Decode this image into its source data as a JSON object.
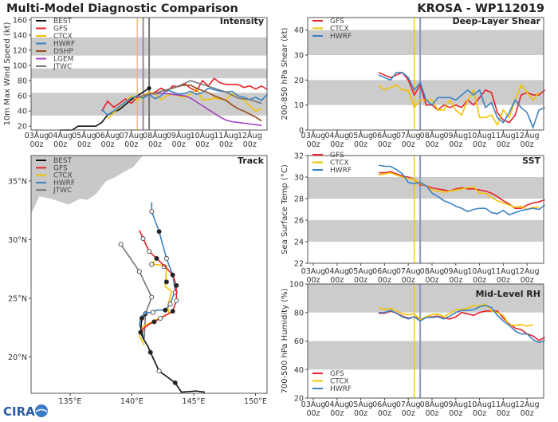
{
  "header": {
    "title": "Multi-Model Diagnostic Comparison",
    "storm": "KROSA - WP112019"
  },
  "colors": {
    "BEST": "#111111",
    "GFS": "#e8202a",
    "CTCX": "#f2c200",
    "HWRF": "#3b82c4",
    "DSHP": "#9a4a1e",
    "LGEM": "#a040c0",
    "JTWC": "#777777",
    "band": "#cccccc",
    "land": "#c8c8c8",
    "init_line": "#8898c0",
    "init_line_2": "#9a8a9a"
  },
  "x_ticks": [
    [
      "03Aug",
      "00z"
    ],
    [
      "04Aug",
      "00z"
    ],
    [
      "05Aug",
      "00z"
    ],
    [
      "06Aug",
      "00z"
    ],
    [
      "07Aug",
      "00z"
    ],
    [
      "08Aug",
      "00z"
    ],
    [
      "09Aug",
      "00z"
    ],
    [
      "10Aug",
      "00z"
    ],
    [
      "11Aug",
      "00z"
    ],
    [
      "12Aug",
      "00z"
    ]
  ],
  "logo": "CIRA",
  "chart_data": [
    {
      "type": "line",
      "title": "Intensity",
      "ylabel": "10m Max Wind Speed (kt)",
      "ylim": [
        15,
        163
      ],
      "yticks": [
        20,
        40,
        60,
        80,
        100,
        120,
        140,
        160
      ],
      "bands": [
        [
          34,
          64
        ],
        [
          83,
          96
        ],
        [
          113,
          137
        ]
      ],
      "vlines": [
        {
          "x": "07Aug06z",
          "color": "CTCX"
        },
        {
          "x": "07Aug12z",
          "color": "init_line_2"
        },
        {
          "x": "07Aug18z",
          "color": "JTWC"
        }
      ],
      "legend": "top-left",
      "series": [
        {
          "name": "BEST",
          "x": [
            "04Aug00z",
            "04Aug12z",
            "04Aug18z",
            "05Aug12z",
            "05Aug18z",
            "06Aug00z",
            "06Aug12z",
            "07Aug00z",
            "07Aug12z",
            "07Aug18z"
          ],
          "values": [
            15,
            15,
            20,
            20,
            25,
            35,
            42,
            55,
            65,
            70
          ]
        },
        {
          "name": "GFS",
          "start": "05Aug18z",
          "step_h": 6,
          "values": [
            40,
            53,
            45,
            50,
            56,
            50,
            58,
            60,
            62,
            65,
            70,
            66,
            73,
            72,
            76,
            70,
            66,
            80,
            73,
            83,
            77,
            75,
            75,
            75,
            71,
            73,
            69,
            73,
            68
          ]
        },
        {
          "name": "CTCX",
          "start": "06Aug00z",
          "step_h": 6,
          "values": [
            30,
            38,
            45,
            52,
            60,
            55,
            60,
            65,
            63,
            55,
            60,
            62,
            60,
            58,
            62,
            70,
            55,
            55,
            57,
            56,
            55,
            63,
            57,
            55,
            47,
            40,
            43
          ]
        },
        {
          "name": "HWRF",
          "start": "05Aug18z",
          "step_h": 6,
          "values": [
            42,
            35,
            40,
            46,
            52,
            57,
            60,
            57,
            62,
            56,
            60,
            68,
            65,
            62,
            63,
            66,
            62,
            64,
            70,
            68,
            66,
            65,
            66,
            60,
            58,
            55,
            58,
            54,
            62
          ]
        },
        {
          "name": "DSHP",
          "start": "07Aug12z",
          "step_h": 6,
          "values": [
            60,
            62,
            63,
            66,
            68,
            70,
            73,
            74,
            74,
            70,
            67,
            64,
            60,
            57,
            54,
            48,
            43,
            40,
            36,
            32,
            27
          ]
        },
        {
          "name": "LGEM",
          "start": "07Aug12z",
          "step_h": 6,
          "values": [
            60,
            62,
            63,
            63,
            63,
            62,
            61,
            60,
            57,
            52,
            47,
            42,
            37,
            32,
            28,
            26,
            25,
            24,
            23,
            22,
            21
          ]
        },
        {
          "name": "JTWC",
          "start": "07Aug12z",
          "step_h": 12,
          "values": [
            60,
            63,
            68,
            73,
            80,
            75,
            70,
            65,
            57,
            55,
            50
          ]
        }
      ]
    },
    {
      "type": "line",
      "title": "Deep-Layer Shear",
      "ylabel": "200-850 hPa Shear (kt)",
      "ylim": [
        0,
        45
      ],
      "yticks": [
        0,
        10,
        20,
        30,
        40
      ],
      "bands": [
        [
          10,
          20
        ],
        [
          30,
          40
        ]
      ],
      "vlines": [
        {
          "x": "07Aug06z",
          "color": "CTCX"
        },
        {
          "x": "07Aug12z",
          "color": "init_line"
        }
      ],
      "legend": "top-left",
      "series": [
        {
          "name": "GFS",
          "start": "05Aug18z",
          "step_h": 6,
          "values": [
            23,
            22,
            21,
            22,
            23,
            20,
            14,
            18,
            10,
            10,
            8,
            10,
            9,
            10,
            9,
            12,
            10,
            13,
            16,
            15,
            7,
            4,
            3,
            6,
            14,
            15,
            14,
            14,
            16
          ]
        },
        {
          "name": "CTCX",
          "start": "05Aug18z",
          "step_h": 6,
          "values": [
            18,
            16,
            17,
            18,
            16,
            16,
            9,
            12,
            12,
            12,
            8,
            8,
            12,
            8,
            6,
            12,
            16,
            5,
            5,
            6,
            2,
            8,
            5,
            12,
            18,
            15,
            12,
            15
          ]
        },
        {
          "name": "HWRF",
          "start": "05Aug18z",
          "step_h": 6,
          "values": [
            22,
            21,
            20,
            23,
            23,
            21,
            16,
            19,
            12,
            10,
            13,
            13,
            13,
            12,
            14,
            16,
            14,
            16,
            9,
            11,
            5,
            3,
            7,
            12,
            9,
            7,
            1,
            8,
            9
          ]
        }
      ]
    },
    {
      "type": "line",
      "title": "SST",
      "ylabel": "Sea Surface Temp (°C)",
      "ylim": [
        22,
        32
      ],
      "yticks": [
        22,
        24,
        26,
        28,
        30,
        32
      ],
      "bands": [
        [
          24,
          26
        ],
        [
          28,
          30
        ],
        [
          32,
          32.4
        ]
      ],
      "vlines": [
        {
          "x": "07Aug06z",
          "color": "CTCX"
        },
        {
          "x": "07Aug12z",
          "color": "init_line"
        }
      ],
      "legend": "top-left",
      "series": [
        {
          "name": "GFS",
          "start": "05Aug18z",
          "step_h": 6,
          "values": [
            30.4,
            30.4,
            30.5,
            30.3,
            30.1,
            30.0,
            29.8,
            29.3,
            29.2,
            29.0,
            28.9,
            28.8,
            28.7,
            28.9,
            29.0,
            28.9,
            28.9,
            28.8,
            28.7,
            28.5,
            28.2,
            27.8,
            27.5,
            27.1,
            27.1,
            27.4,
            27.6,
            27.7,
            27.9
          ]
        },
        {
          "name": "CTCX",
          "start": "05Aug18z",
          "step_h": 6,
          "values": [
            30.2,
            30.3,
            30.4,
            30.2,
            30.0,
            29.9,
            29.8,
            29.4,
            29.2,
            28.8,
            28.7,
            28.6,
            28.7,
            28.8,
            28.9,
            29.0,
            29.1,
            28.5,
            28.5,
            28.1,
            27.8,
            27.6,
            27.4,
            27.2,
            27.3,
            27.0,
            27.2,
            27.2
          ]
        },
        {
          "name": "HWRF",
          "start": "05Aug18z",
          "step_h": 6,
          "values": [
            31.1,
            31.0,
            31.0,
            30.7,
            30.3,
            29.5,
            29.4,
            29.5,
            29.2,
            28.5,
            28.2,
            27.8,
            27.6,
            27.3,
            27.1,
            26.8,
            27.0,
            27.1,
            27.1,
            26.7,
            26.6,
            26.9,
            26.5,
            26.7,
            26.9,
            27.0,
            27.1,
            27.0,
            27.4
          ]
        }
      ]
    },
    {
      "type": "line",
      "title": "Mid-Level RH",
      "ylabel": "700-500 hPa Humidity (%)",
      "ylim": [
        20,
        100
      ],
      "yticks": [
        20,
        40,
        60,
        80,
        100
      ],
      "bands": [
        [
          40,
          60
        ],
        [
          80,
          100
        ]
      ],
      "vlines": [
        {
          "x": "07Aug06z",
          "color": "CTCX"
        },
        {
          "x": "07Aug12z",
          "color": "init_line"
        }
      ],
      "legend": "bottom-left",
      "series": [
        {
          "name": "GFS",
          "start": "05Aug18z",
          "step_h": 6,
          "values": [
            79.5,
            79.5,
            81,
            79.5,
            77.5,
            76,
            77,
            75,
            76.5,
            77,
            77.5,
            76,
            75.5,
            77,
            80,
            79,
            78,
            80,
            81,
            81,
            81,
            76,
            72,
            69,
            68,
            65,
            63.5,
            60.5,
            62.5
          ]
        },
        {
          "name": "CTCX",
          "start": "05Aug18z",
          "step_h": 6,
          "values": [
            83.5,
            82,
            83,
            81,
            79,
            78.5,
            79,
            75,
            77,
            78.5,
            79,
            77,
            79.5,
            82,
            82,
            83,
            85,
            84.5,
            86,
            81,
            80,
            78,
            71,
            71,
            71.5,
            70.5,
            71.5
          ]
        },
        {
          "name": "HWRF",
          "start": "05Aug18z",
          "step_h": 6,
          "values": [
            80,
            80,
            81.5,
            79.5,
            77,
            75.5,
            77,
            74,
            76.5,
            76.5,
            77,
            75.5,
            77.5,
            80,
            81.5,
            81.5,
            82,
            84,
            85,
            83.5,
            78,
            74,
            71,
            67,
            65,
            65,
            61,
            59,
            60.5
          ]
        }
      ]
    },
    {
      "type": "map-track",
      "title": "Track",
      "xlim": [
        131.8,
        151.0
      ],
      "ylim": [
        17.0,
        37.2
      ],
      "xticks": [
        [
          "135",
          "135°E"
        ],
        [
          "140",
          "140°E"
        ],
        [
          "145",
          "145°E"
        ],
        [
          "150",
          "150°E"
        ]
      ],
      "yticks": [
        [
          "20",
          "20°N"
        ],
        [
          "25",
          "25°N"
        ],
        [
          "30",
          "30°N"
        ],
        [
          "35",
          "35°N"
        ]
      ],
      "legend": "top-left",
      "series": [
        {
          "name": "BEST",
          "lon": [
            145.9,
            145.2,
            144.0,
            143.5,
            142.2,
            141.5,
            141.3,
            140.9,
            140.7,
            140.8,
            141.2
          ],
          "lat": [
            17.0,
            17.1,
            17.0,
            17.8,
            18.8,
            20.4,
            20.9,
            21.6,
            22.1,
            23.3,
            23.7
          ],
          "markers": [
            [
              143.5,
              17.8,
              1
            ],
            [
              142.2,
              18.8,
              0
            ],
            [
              141.5,
              20.4,
              1
            ],
            [
              140.7,
              22.1,
              1
            ],
            [
              140.8,
              23.3,
              1
            ]
          ]
        },
        {
          "name": "GFS",
          "lon": [
            140.8,
            140.9,
            141.4,
            141.8,
            142.3,
            143.3,
            143.6,
            143.6,
            143.5,
            143.3,
            142.7,
            142.0,
            141.4,
            140.9,
            140.6
          ],
          "lat": [
            21.9,
            22.4,
            22.8,
            23.0,
            23.3,
            23.9,
            24.8,
            25.7,
            26.4,
            27.0,
            27.7,
            28.4,
            29.0,
            30.1,
            30.8
          ],
          "markers": [
            [
              141.8,
              23.0,
              1
            ],
            [
              142.3,
              23.3,
              0
            ],
            [
              143.3,
              23.9,
              1
            ],
            [
              143.6,
              24.8,
              0
            ],
            [
              143.6,
              26.1,
              1
            ],
            [
              143.3,
              27.0,
              1
            ],
            [
              142.0,
              28.4,
              1
            ],
            [
              141.4,
              29.0,
              0
            ],
            [
              140.9,
              30.1,
              0
            ]
          ]
        },
        {
          "name": "CTCX",
          "lon": [
            141.0,
            140.6,
            140.9,
            142.0,
            143.0,
            142.9,
            143.2,
            142.7,
            142.8,
            141.7,
            141.8,
            141.5
          ],
          "lat": [
            21.0,
            21.8,
            22.6,
            23.2,
            23.7,
            24.3,
            25.6,
            26.0,
            27.8,
            27.9,
            28.2,
            27.7
          ],
          "markers": [
            [
              142.8,
              26.4,
              1
            ],
            [
              142.6,
              27.7,
              0
            ],
            [
              141.6,
              27.9,
              0
            ]
          ]
        },
        {
          "name": "HWRF",
          "lon": [
            141.0,
            140.8,
            140.6,
            140.8,
            141.1,
            141.7,
            142.0,
            142.7,
            143.1,
            143.5,
            143.3,
            142.8,
            142.2,
            141.6,
            141.6
          ],
          "lat": [
            21.5,
            22.2,
            22.8,
            23.5,
            23.8,
            23.8,
            24.0,
            24.0,
            24.5,
            25.7,
            27.0,
            28.4,
            30.7,
            32.4,
            33.2
          ],
          "markers": [
            [
              141.7,
              23.8,
              0
            ],
            [
              142.7,
              24.0,
              1
            ],
            [
              143.1,
              24.5,
              0
            ],
            [
              143.5,
              25.5,
              0
            ],
            [
              142.8,
              28.4,
              0
            ],
            [
              142.2,
              30.7,
              1
            ],
            [
              141.6,
              32.4,
              0
            ]
          ]
        },
        {
          "name": "JTWC",
          "lon": [
            141.0,
            141.1,
            141.6,
            140.6,
            139.1
          ],
          "lat": [
            21.6,
            23.7,
            25.1,
            27.3,
            29.6
          ],
          "markers": [
            [
              141.1,
              23.7,
              0
            ],
            [
              141.6,
              25.1,
              0
            ],
            [
              140.6,
              27.3,
              0
            ],
            [
              139.1,
              29.6,
              0
            ]
          ]
        }
      ]
    }
  ]
}
